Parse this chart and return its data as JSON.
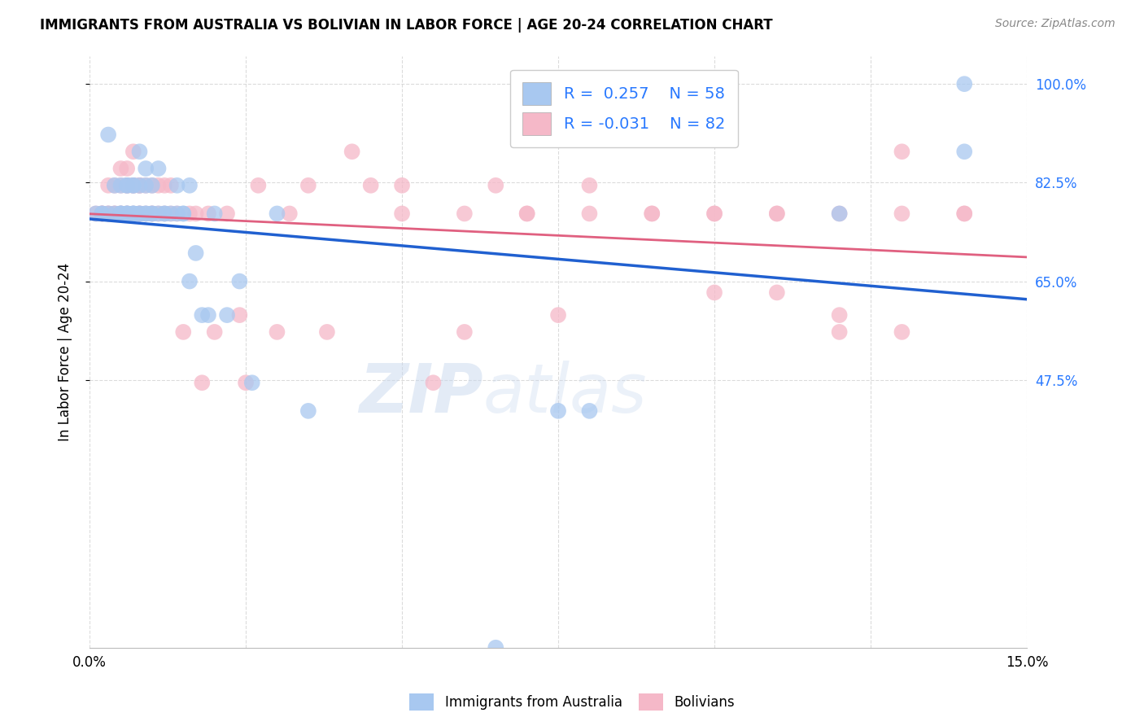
{
  "title": "IMMIGRANTS FROM AUSTRALIA VS BOLIVIAN IN LABOR FORCE | AGE 20-24 CORRELATION CHART",
  "source": "Source: ZipAtlas.com",
  "ylabel": "In Labor Force | Age 20-24",
  "xlim": [
    0.0,
    0.15
  ],
  "ylim": [
    0.0,
    1.05
  ],
  "xticks": [
    0.0,
    0.025,
    0.05,
    0.075,
    0.1,
    0.125,
    0.15
  ],
  "xtick_labels": [
    "0.0%",
    "",
    "",
    "",
    "",
    "",
    "15.0%"
  ],
  "ytick_positions": [
    0.475,
    0.65,
    0.825,
    1.0
  ],
  "ytick_labels": [
    "47.5%",
    "65.0%",
    "82.5%",
    "100.0%"
  ],
  "legend1_R": "0.257",
  "legend1_N": "58",
  "legend2_R": "-0.031",
  "legend2_N": "82",
  "blue_color": "#A8C8F0",
  "pink_color": "#F5B8C8",
  "blue_line_color": "#2060D0",
  "pink_line_color": "#E06080",
  "grid_color": "#CCCCCC",
  "background_color": "#FFFFFF",
  "watermark_text": "ZIP",
  "watermark_text2": "atlas",
  "australia_x": [
    0.001,
    0.002,
    0.002,
    0.003,
    0.003,
    0.004,
    0.004,
    0.005,
    0.005,
    0.005,
    0.005,
    0.006,
    0.006,
    0.006,
    0.006,
    0.006,
    0.007,
    0.007,
    0.007,
    0.007,
    0.007,
    0.008,
    0.008,
    0.008,
    0.008,
    0.009,
    0.009,
    0.009,
    0.009,
    0.01,
    0.01,
    0.01,
    0.011,
    0.011,
    0.012,
    0.012,
    0.013,
    0.014,
    0.014,
    0.015,
    0.015,
    0.016,
    0.016,
    0.017,
    0.018,
    0.019,
    0.02,
    0.022,
    0.024,
    0.026,
    0.03,
    0.035,
    0.065,
    0.075,
    0.08,
    0.12,
    0.14,
    0.14
  ],
  "australia_y": [
    0.77,
    0.77,
    0.77,
    0.77,
    0.91,
    0.82,
    0.77,
    0.77,
    0.82,
    0.77,
    0.77,
    0.77,
    0.77,
    0.82,
    0.82,
    0.77,
    0.77,
    0.82,
    0.82,
    0.77,
    0.77,
    0.77,
    0.77,
    0.82,
    0.88,
    0.77,
    0.77,
    0.82,
    0.85,
    0.77,
    0.77,
    0.82,
    0.77,
    0.85,
    0.77,
    0.77,
    0.77,
    0.77,
    0.82,
    0.77,
    0.77,
    0.82,
    0.65,
    0.7,
    0.59,
    0.59,
    0.77,
    0.59,
    0.65,
    0.47,
    0.77,
    0.42,
    0.0,
    0.42,
    0.42,
    0.77,
    0.88,
    1.0
  ],
  "bolivia_x": [
    0.001,
    0.002,
    0.002,
    0.002,
    0.003,
    0.003,
    0.003,
    0.004,
    0.004,
    0.004,
    0.005,
    0.005,
    0.005,
    0.005,
    0.006,
    0.006,
    0.006,
    0.006,
    0.006,
    0.007,
    0.007,
    0.007,
    0.007,
    0.008,
    0.008,
    0.008,
    0.008,
    0.009,
    0.009,
    0.01,
    0.01,
    0.01,
    0.011,
    0.011,
    0.012,
    0.012,
    0.013,
    0.013,
    0.014,
    0.015,
    0.016,
    0.017,
    0.018,
    0.019,
    0.02,
    0.022,
    0.024,
    0.025,
    0.027,
    0.03,
    0.032,
    0.035,
    0.038,
    0.042,
    0.045,
    0.05,
    0.055,
    0.06,
    0.065,
    0.07,
    0.075,
    0.08,
    0.09,
    0.1,
    0.11,
    0.12,
    0.13,
    0.14,
    0.1,
    0.11,
    0.12,
    0.13,
    0.14,
    0.13,
    0.12,
    0.11,
    0.1,
    0.09,
    0.08,
    0.07,
    0.06,
    0.05
  ],
  "bolivia_y": [
    0.77,
    0.77,
    0.77,
    0.77,
    0.77,
    0.82,
    0.77,
    0.77,
    0.77,
    0.82,
    0.77,
    0.77,
    0.82,
    0.85,
    0.77,
    0.77,
    0.82,
    0.82,
    0.85,
    0.77,
    0.82,
    0.82,
    0.88,
    0.77,
    0.82,
    0.82,
    0.77,
    0.82,
    0.77,
    0.77,
    0.77,
    0.82,
    0.77,
    0.82,
    0.77,
    0.82,
    0.77,
    0.82,
    0.77,
    0.56,
    0.77,
    0.77,
    0.47,
    0.77,
    0.56,
    0.77,
    0.59,
    0.47,
    0.82,
    0.56,
    0.77,
    0.82,
    0.56,
    0.88,
    0.82,
    0.82,
    0.47,
    0.56,
    0.82,
    0.77,
    0.59,
    0.82,
    0.77,
    0.77,
    0.77,
    0.59,
    0.88,
    0.77,
    0.63,
    0.63,
    0.56,
    0.56,
    0.77,
    0.77,
    0.77,
    0.77,
    0.77,
    0.77,
    0.77,
    0.77,
    0.77,
    0.77
  ]
}
